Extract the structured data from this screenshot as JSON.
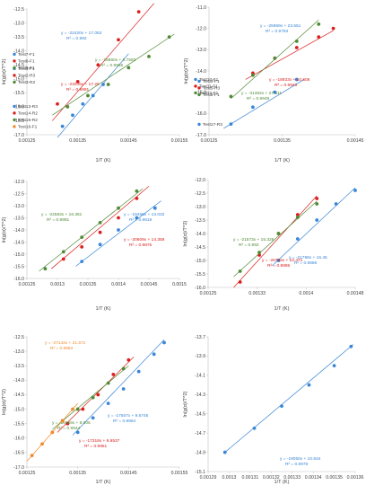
{
  "colors": {
    "blue": "#3a86d6",
    "red": "#d9201f",
    "green": "#4f8b36",
    "orange": "#f0892a",
    "axis": "#bfbfbf",
    "text": "#404040"
  },
  "chart_data": [
    {
      "type": "scatter",
      "xlabel": "1/T (K)",
      "ylabel": "ln(g(α)/T^2)",
      "xlim": [
        0.00125,
        0.00155
      ],
      "ylim": [
        -17,
        -12.5
      ],
      "xticks": [
        "0.00125",
        "0.00135",
        "0.00145",
        "0.00155"
      ],
      "yticks": [
        "-12.5",
        "-13.0",
        "-13.5",
        "-14.0",
        "-14.5",
        "-15.0",
        "-15.5",
        "-16.0",
        "-16.5",
        "-17.0"
      ],
      "series": [
        {
          "name": "Test1-F1",
          "color": "#3a86d6",
          "x": [
            0.00132,
            0.00134,
            0.00136,
            0.00138,
            0.0014
          ],
          "y": [
            -12.8,
            -13.2,
            -13.6,
            -13.9,
            -14.3
          ],
          "trend": [
            [
              0.00131,
              -12.4
            ],
            [
              0.00145,
              -15.4
            ]
          ],
          "equation": "y = -22420x + 17.053",
          "r2": "R² = 0.992"
        },
        {
          "name": "Test2-R3",
          "color": "#d9201f",
          "x": [
            0.00131,
            0.00135,
            0.00139,
            0.00143,
            0.00147
          ],
          "y": [
            -13.6,
            -14.4,
            -15.0,
            -15.9,
            -16.9
          ],
          "trend": [
            [
              0.0013,
              -13.0
            ],
            [
              0.0015,
              -17.2
            ]
          ],
          "equation": "y = -23205x + 17.26",
          "r2": "R² = 0.9991"
        },
        {
          "name": "Test3-R2",
          "color": "#4f8b36",
          "x": [
            0.00133,
            0.00137,
            0.00141,
            0.00145,
            0.00149,
            0.00153
          ],
          "y": [
            -13.5,
            -13.9,
            -14.3,
            -14.9,
            -15.3,
            -16.0
          ],
          "trend": [
            [
              0.0013,
              -13.2
            ],
            [
              0.00154,
              -16.1
            ]
          ],
          "equation": "y = -15860x + 8.7583",
          "r2": "R² = 0.9966"
        }
      ]
    },
    {
      "type": "scatter",
      "xlabel": "1/T (K)",
      "ylabel": "ln(g(α)/T^2)",
      "xlim": [
        0.00125,
        0.00145
      ],
      "ylim": [
        -17,
        -11
      ],
      "xticks": [
        "0.00125",
        "0.00135",
        "0.00145"
      ],
      "yticks": [
        "-11.0",
        "-12.0",
        "-13.0",
        "-14.0",
        "-15.0",
        "-16.0",
        "-17.0"
      ],
      "series": [
        {
          "name": "Test4-F1",
          "color": "#3a86d6",
          "x": [
            0.00128,
            0.00131,
            0.00134,
            0.00137
          ],
          "y": [
            -11.5,
            -12.3,
            -13.0,
            -13.6
          ],
          "trend": [
            [
              0.00127,
              -11.3
            ],
            [
              0.00138,
              -13.6
            ]
          ],
          "equation": "y = -25969x + 23.551",
          "r2": "R² = 0.9783"
        },
        {
          "name": "Test5-R3",
          "color": "#d9201f",
          "x": [
            0.00131,
            0.00134,
            0.00137,
            0.0014,
            0.00142
          ],
          "y": [
            -13.9,
            -14.6,
            -15.1,
            -15.6,
            -16.0
          ],
          "trend": [
            [
              0.0013,
              -13.6
            ],
            [
              0.00142,
              -15.9
            ]
          ],
          "equation": "y = -18933x + 10.608",
          "r2": "R² = 0.9943"
        },
        {
          "name": "Test6-F1",
          "color": "#4f8b36",
          "x": [
            0.00128,
            0.00131,
            0.00134,
            0.00137,
            0.0014
          ],
          "y": [
            -12.8,
            -13.8,
            -14.6,
            -15.4,
            -16.2
          ],
          "trend": [
            [
              0.00128,
              -12.7
            ],
            [
              0.0014,
              -16.4
            ]
          ],
          "equation": "y = -31362x + 27.311",
          "r2": "R² = 0.9949"
        }
      ]
    },
    {
      "type": "scatter",
      "xlabel": "1/T (K)",
      "ylabel": "ln(g(α)/T^2)",
      "xlim": [
        0.00125,
        0.0015
      ],
      "ylim": [
        -16,
        -12
      ],
      "xticks": [
        "0.00125",
        "0.0013",
        "0.00135",
        "0.0014",
        "0.00145",
        "0.0015"
      ],
      "yticks": [
        "-12.0",
        "-12.5",
        "-13.0",
        "-13.5",
        "-14.0",
        "-14.5",
        "-15.0",
        "-15.5",
        "-16.0"
      ],
      "series": [
        {
          "name": "Test7-F1",
          "color": "#3a86d6",
          "x": [
            0.00134,
            0.00137,
            0.0014,
            0.00143,
            0.00146
          ],
          "y": [
            -12.7,
            -13.4,
            -14.0,
            -14.5,
            -14.9
          ],
          "trend": [
            [
              0.00133,
              -12.5
            ],
            [
              0.00147,
              -15.2
            ]
          ],
          "equation": "y = -19466x + 13.032",
          "r2": "R² = 0.9818"
        },
        {
          "name": "Test8-F1",
          "color": "#d9201f",
          "x": [
            0.00131,
            0.00134,
            0.00137,
            0.0014,
            0.00143
          ],
          "y": [
            -12.8,
            -13.3,
            -13.9,
            -14.5,
            -15.3
          ],
          "trend": [
            [
              0.00129,
              -12.4
            ],
            [
              0.00145,
              -15.8
            ]
          ],
          "equation": "y = -20809x + 14.358",
          "r2": "R² = 0.9875"
        },
        {
          "name": "Test9-F1",
          "color": "#4f8b36",
          "x": [
            0.00128,
            0.00131,
            0.00134,
            0.00137,
            0.0014,
            0.00143
          ],
          "y": [
            -12.4,
            -13.1,
            -13.7,
            -14.3,
            -14.9,
            -15.6
          ],
          "trend": [
            [
              0.00127,
              -12.3
            ],
            [
              0.00144,
              -15.7
            ]
          ],
          "equation": "y = -22583x + 16.361",
          "r2": "R² = 0.9991"
        }
      ]
    },
    {
      "type": "scatter",
      "xlabel": "1/T (K)",
      "ylabel": "ln(g(α)/T^2)",
      "xlim": [
        0.00125,
        0.00148
      ],
      "ylim": [
        -16,
        -12
      ],
      "xticks": [
        "0.00125",
        "0.00133",
        "0.0014",
        "0.00148"
      ],
      "yticks": [
        "-12.0",
        "-12.5",
        "-13.0",
        "-13.5",
        "-14.0",
        "-14.5",
        "-15.0",
        "-15.5",
        "-16.0"
      ],
      "series": [
        {
          "name": "Test10-F1",
          "color": "#3a86d6",
          "x": [
            0.00136,
            0.00139,
            0.00142,
            0.00145,
            0.00148
          ],
          "y": [
            -13.0,
            -13.8,
            -14.5,
            -15.1,
            -15.6
          ],
          "trend": [
            [
              0.00135,
              -12.8
            ],
            [
              0.00148,
              -15.7
            ]
          ],
          "equation": "y = -21798x + 16.45",
          "r2": "R² = 0.9886"
        },
        {
          "name": "Test11-F1",
          "color": "#d9201f",
          "x": [
            0.0013,
            0.00133,
            0.00136,
            0.00139,
            0.00142
          ],
          "y": [
            -12.2,
            -13.2,
            -14.0,
            -14.7,
            -15.3
          ],
          "trend": [
            [
              0.00129,
              -12.0
            ],
            [
              0.00142,
              -15.4
            ]
          ],
          "equation": "y = -26794x + 22.471",
          "r2": "R² = 0.9895"
        },
        {
          "name": "Test12-F1",
          "color": "#4f8b36",
          "x": [
            0.0013,
            0.00133,
            0.00136,
            0.00139,
            0.00142
          ],
          "y": [
            -12.6,
            -13.3,
            -14.0,
            -14.6,
            -15.1
          ],
          "trend": [
            [
              0.00129,
              -12.4
            ],
            [
              0.00142,
              -15.2
            ]
          ],
          "equation": "y = -21573x + 15.328",
          "r2": "R² = 0.992"
        }
      ]
    },
    {
      "type": "scatter",
      "xlabel": "1/T (K)",
      "ylabel": "ln(g(α)/T^2)",
      "xlim": [
        0.00125,
        0.00155
      ],
      "ylim": [
        -17,
        -12.5
      ],
      "xticks": [
        "0.00125",
        "0.00135",
        "0.00145",
        "0.00155"
      ],
      "yticks": [
        "-12.5",
        "-13.0",
        "-13.5",
        "-14.0",
        "-14.5",
        "-15.0",
        "-15.5",
        "-16.0",
        "-16.5",
        "-17.0"
      ],
      "series": [
        {
          "name": "Test13-R3",
          "color": "#3a86d6",
          "x": [
            0.00135,
            0.00138,
            0.00141,
            0.00144,
            0.00147,
            0.0015,
            0.00152
          ],
          "y": [
            -13.7,
            -14.2,
            -14.7,
            -15.2,
            -15.8,
            -16.4,
            -16.8
          ],
          "trend": [
            [
              0.00134,
              -13.6
            ],
            [
              0.00152,
              -16.9
            ]
          ],
          "equation": "y = -17557x + 9.6745",
          "r2": "R² = 0.9964"
        },
        {
          "name": "Test14-R2",
          "color": "#d9201f",
          "x": [
            0.00133,
            0.00136,
            0.00139,
            0.00142,
            0.00145
          ],
          "y": [
            -14.0,
            -14.5,
            -15.0,
            -15.7,
            -16.2
          ],
          "trend": [
            [
              0.00131,
              -13.7
            ],
            [
              0.00146,
              -16.3
            ]
          ],
          "equation": "y = -17318x + 8.9537",
          "r2": "R² = 0.9951"
        },
        {
          "name": "Test15-R2",
          "color": "#4f8b36",
          "x": [
            0.00132,
            0.00135,
            0.00138,
            0.00141,
            0.00144
          ],
          "y": [
            -14.1,
            -14.5,
            -14.9,
            -15.4,
            -15.9
          ],
          "trend": [
            [
              0.0013,
              -13.8
            ],
            [
              0.00145,
              -16.0
            ]
          ],
          "equation": "y = -16569x + 8.005",
          "r2": "R² = 0.9944"
        },
        {
          "name": "Test16-F1",
          "color": "#f0892a",
          "x": [
            0.00126,
            0.00128,
            0.0013,
            0.00132,
            0.00134
          ],
          "y": [
            -12.9,
            -13.3,
            -13.7,
            -14.1,
            -14.5
          ],
          "trend": [
            [
              0.00125,
              -12.7
            ],
            [
              0.00135,
              -14.7
            ]
          ],
          "equation": "y = -27142x + 21.571",
          "r2": "R² = 0.9953"
        }
      ]
    },
    {
      "type": "scatter",
      "xlabel": "1/T (K)",
      "ylabel": "ln(g(α)/T^2)",
      "xlim": [
        0.00129,
        0.00136
      ],
      "ylim": [
        -15.1,
        -13.7
      ],
      "xticks": [
        "0.00129",
        "0.0013",
        "0.00131",
        "0.00132",
        "0.00133",
        "0.00134",
        "0.00135",
        "0.00136"
      ],
      "yticks": [
        "-13.7",
        "-13.9",
        "-14.1",
        "-14.3",
        "-14.5",
        "-14.7",
        "-14.9",
        "-15.1"
      ],
      "series": [
        {
          "name": "Test17-R3",
          "color": "#3a86d6",
          "x": [
            0.001298,
            0.001312,
            0.001325,
            0.001338,
            0.00135,
            0.001358
          ],
          "y": [
            -13.9,
            -14.15,
            -14.38,
            -14.6,
            -14.8,
            -15.0
          ],
          "trend": [
            [
              0.001298,
              -13.9
            ],
            [
              0.001359,
              -15.02
            ]
          ],
          "equation": "y = -19050x + 10.834",
          "r2": "R² = 0.9978"
        }
      ]
    }
  ]
}
